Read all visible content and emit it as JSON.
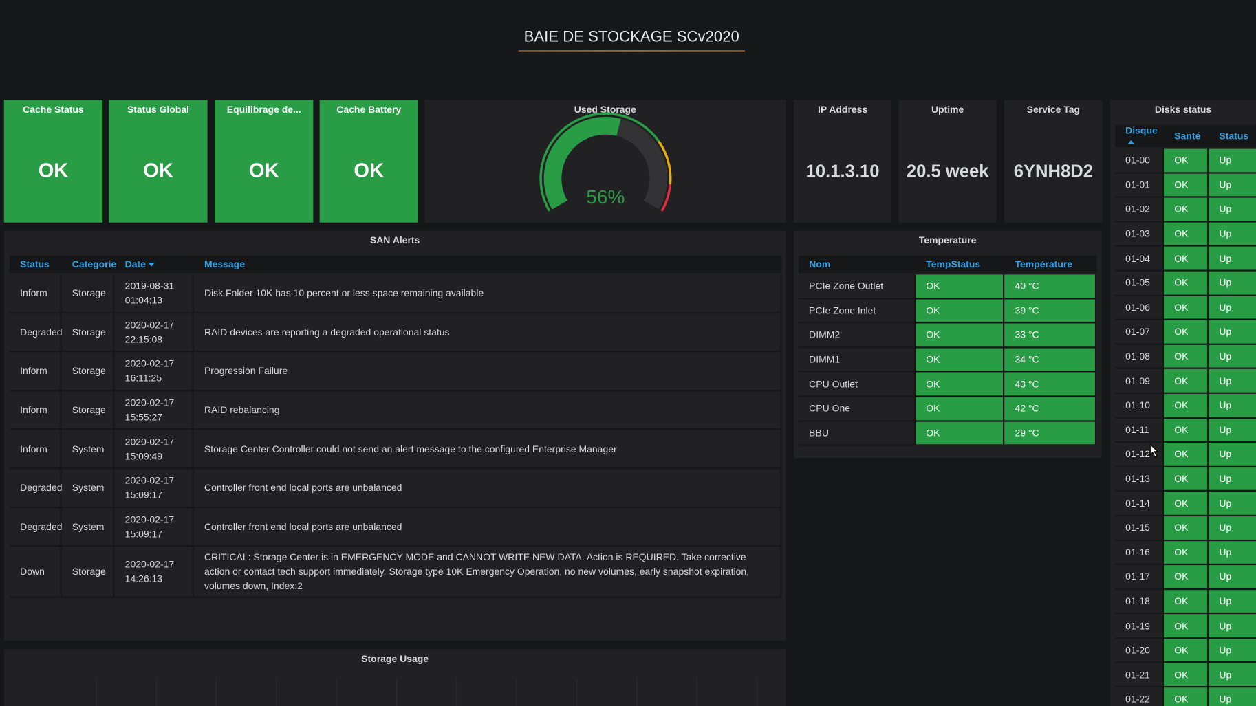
{
  "header": {
    "title": "BAIE DE STOCKAGE SCv2020"
  },
  "stats": [
    {
      "title": "Cache Status",
      "value": "OK"
    },
    {
      "title": "Status Global",
      "value": "OK"
    },
    {
      "title": "Equilibrage de...",
      "value": "OK"
    },
    {
      "title": "Cache Battery",
      "value": "OK"
    }
  ],
  "used_storage": {
    "title": "Used Storage",
    "value": 56,
    "value_label": "56%",
    "range": [
      0,
      100
    ]
  },
  "info": [
    {
      "title": "IP Address",
      "value": "10.1.3.10"
    },
    {
      "title": "Uptime",
      "value": "20.5 week"
    },
    {
      "title": "Service Tag",
      "value": "6YNH8D2"
    }
  ],
  "san_alerts": {
    "title": "SAN Alerts",
    "columns": [
      "Status",
      "Categorie",
      "Date",
      "Message"
    ],
    "rows": [
      [
        "Inform",
        "Storage",
        "2019-08-31 01:04:13",
        "Disk Folder 10K has 10 percent or less space remaining available"
      ],
      [
        "Degraded",
        "Storage",
        "2020-02-17 22:15:08",
        "RAID devices are reporting a degraded operational status"
      ],
      [
        "Inform",
        "Storage",
        "2020-02-17 16:11:25",
        "Progression Failure"
      ],
      [
        "Inform",
        "Storage",
        "2020-02-17 15:55:27",
        "RAID rebalancing"
      ],
      [
        "Inform",
        "System",
        "2020-02-17 15:09:49",
        "Storage Center Controller could not send an alert message to the configured Enterprise Manager"
      ],
      [
        "Degraded",
        "System",
        "2020-02-17 15:09:17",
        "Controller front end local ports are unbalanced"
      ],
      [
        "Degraded",
        "System",
        "2020-02-17 15:09:17",
        "Controller front end local ports are unbalanced"
      ],
      [
        "Down",
        "Storage",
        "2020-02-17 14:26:13",
        "CRITICAL: Storage Center is in EMERGENCY MODE and CANNOT WRITE NEW DATA. Action is REQUIRED. Take corrective action or contact tech support immediately. Storage type 10K Emergency Operation, no new volumes, early snapshot expiration, volumes down, Index:2"
      ]
    ]
  },
  "temperature": {
    "title": "Temperature",
    "columns": [
      "Nom",
      "TempStatus",
      "Température"
    ],
    "rows": [
      [
        "PCIe Zone Outlet",
        "OK",
        "40 °C"
      ],
      [
        "PCIe Zone Inlet",
        "OK",
        "39 °C"
      ],
      [
        "DIMM2",
        "OK",
        "33 °C"
      ],
      [
        "DIMM1",
        "OK",
        "34 °C"
      ],
      [
        "CPU Outlet",
        "OK",
        "43 °C"
      ],
      [
        "CPU One",
        "OK",
        "42 °C"
      ],
      [
        "BBU",
        "OK",
        "29 °C"
      ]
    ]
  },
  "disks": {
    "title": "Disks status",
    "columns": [
      "Disque",
      "Santé",
      "Status"
    ],
    "rows": [
      [
        "01-00",
        "OK",
        "Up"
      ],
      [
        "01-01",
        "OK",
        "Up"
      ],
      [
        "01-02",
        "OK",
        "Up"
      ],
      [
        "01-03",
        "OK",
        "Up"
      ],
      [
        "01-04",
        "OK",
        "Up"
      ],
      [
        "01-05",
        "OK",
        "Up"
      ],
      [
        "01-06",
        "OK",
        "Up"
      ],
      [
        "01-07",
        "OK",
        "Up"
      ],
      [
        "01-08",
        "OK",
        "Up"
      ],
      [
        "01-09",
        "OK",
        "Up"
      ],
      [
        "01-10",
        "OK",
        "Up"
      ],
      [
        "01-11",
        "OK",
        "Up"
      ],
      [
        "01-12",
        "OK",
        "Up"
      ],
      [
        "01-13",
        "OK",
        "Up"
      ],
      [
        "01-14",
        "OK",
        "Up"
      ],
      [
        "01-15",
        "OK",
        "Up"
      ],
      [
        "01-16",
        "OK",
        "Up"
      ],
      [
        "01-17",
        "OK",
        "Up"
      ],
      [
        "01-18",
        "OK",
        "Up"
      ],
      [
        "01-19",
        "OK",
        "Up"
      ],
      [
        "01-20",
        "OK",
        "Up"
      ],
      [
        "01-21",
        "OK",
        "Up"
      ],
      [
        "01-22",
        "OK",
        "Up"
      ]
    ]
  },
  "storage_usage": {
    "title": "Storage Usage"
  }
}
